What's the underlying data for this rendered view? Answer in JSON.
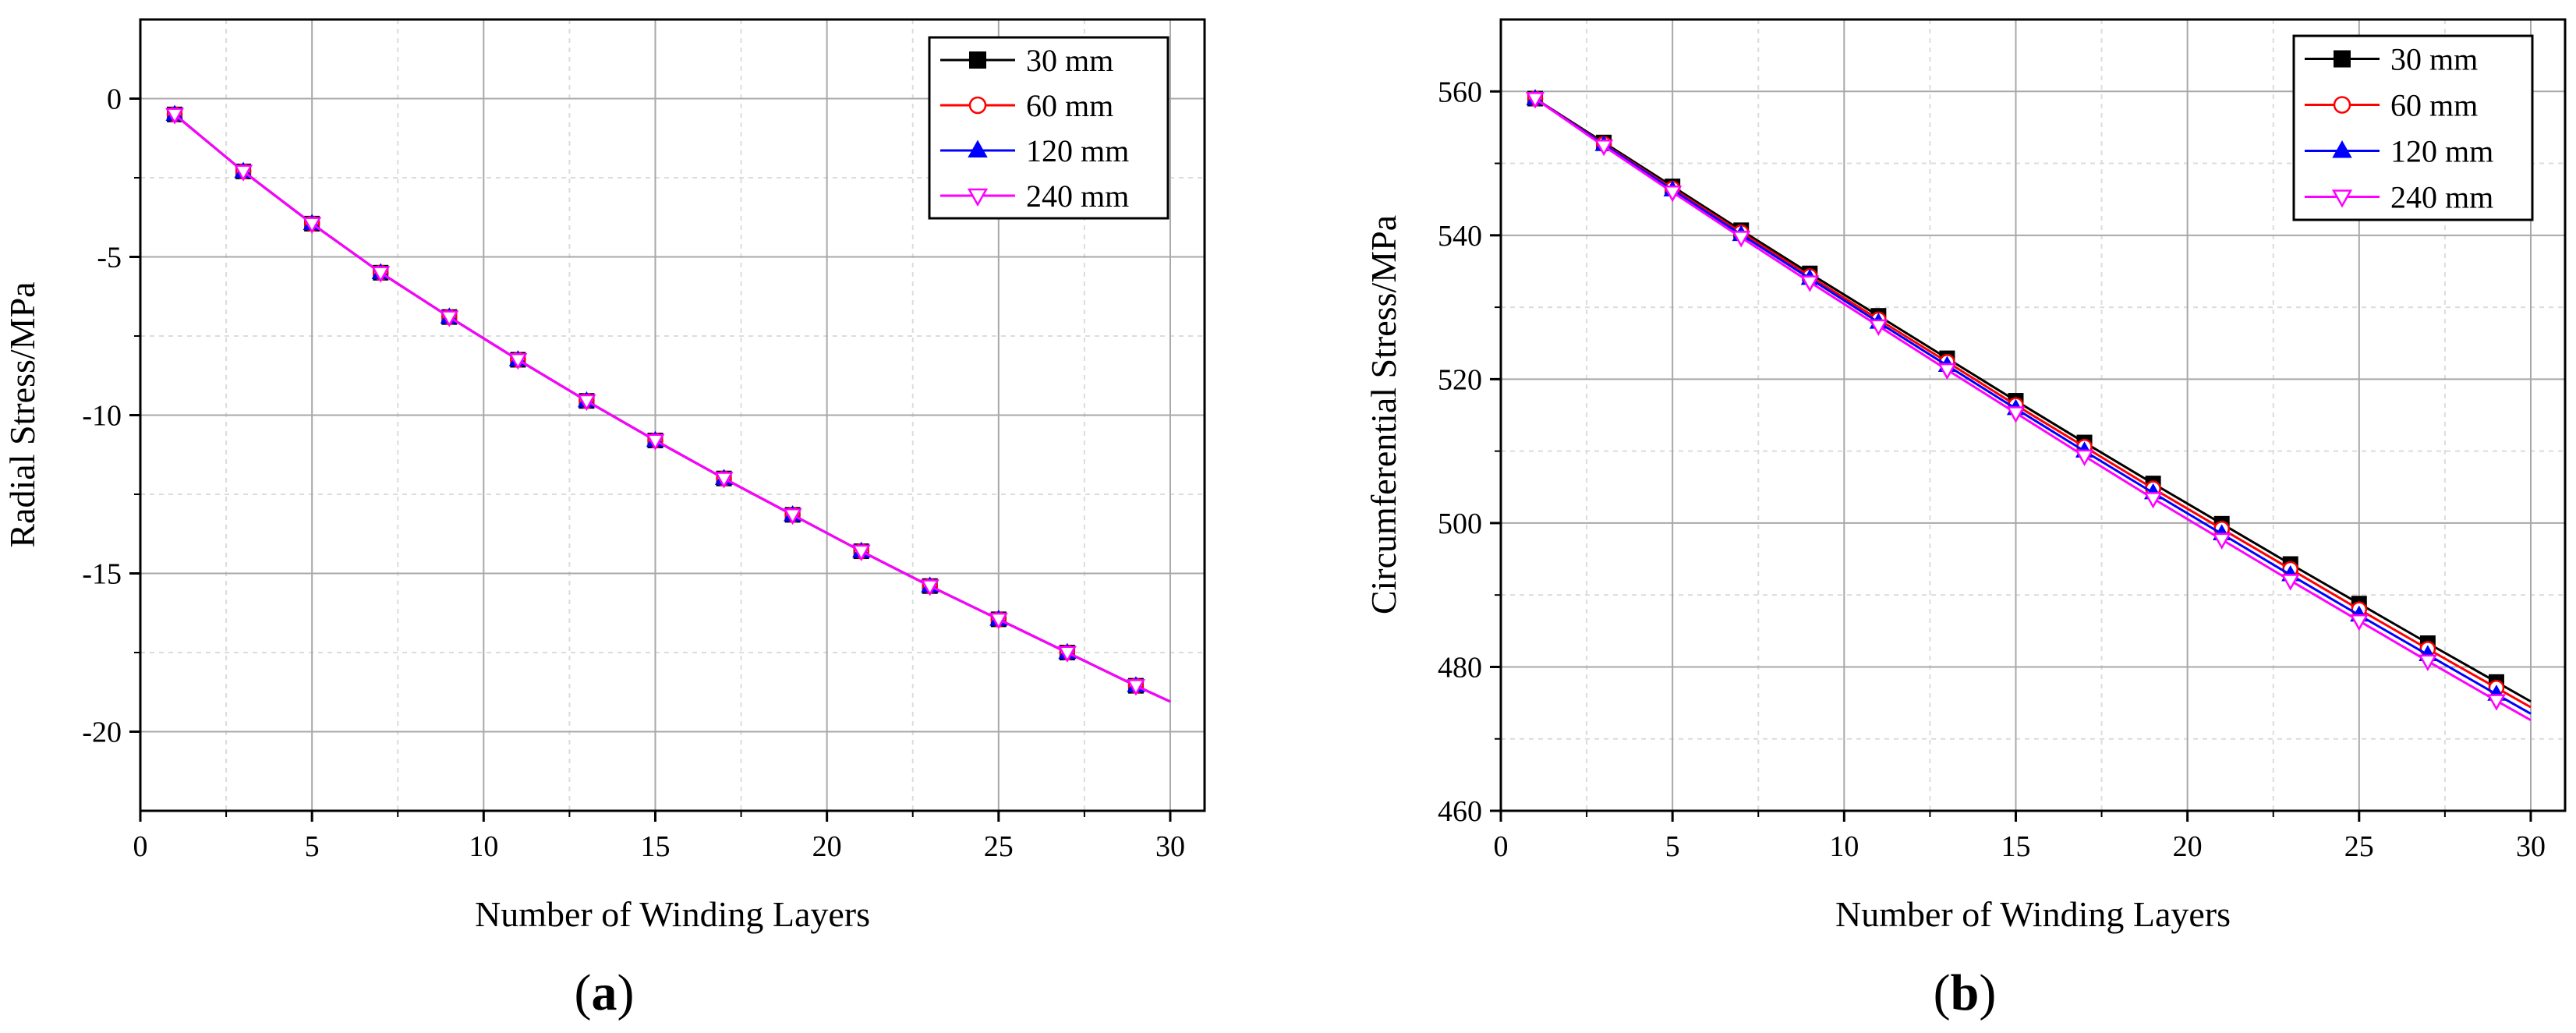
{
  "chart_data": [
    {
      "type": "line",
      "panel_label": "a",
      "xlabel": "Number of Winding Layers",
      "ylabel": "Radial Stress/MPa",
      "xlim": [
        0,
        31
      ],
      "ylim": [
        -22.5,
        2.5
      ],
      "xticks": [
        0,
        5,
        10,
        15,
        20,
        25,
        30
      ],
      "yticks": [
        0,
        -5,
        -10,
        -15,
        -20
      ],
      "grid": true,
      "legend_position": "top-right",
      "x": [
        1,
        3,
        5,
        7,
        9,
        11,
        13,
        15,
        17,
        19,
        21,
        23,
        25,
        27,
        29,
        30
      ],
      "series": [
        {
          "name": "30 mm",
          "color": "#000000",
          "marker": "filled-square",
          "values": [
            -0.5,
            -2.3,
            -3.95,
            -5.5,
            -6.9,
            -8.25,
            -9.55,
            -10.8,
            -12.0,
            -13.15,
            -14.3,
            -15.4,
            -16.45,
            -17.5,
            -18.55,
            -19.05
          ]
        },
        {
          "name": "60 mm",
          "color": "#ff0000",
          "marker": "open-circle",
          "values": [
            -0.5,
            -2.3,
            -3.95,
            -5.5,
            -6.9,
            -8.25,
            -9.55,
            -10.8,
            -12.0,
            -13.15,
            -14.3,
            -15.4,
            -16.45,
            -17.5,
            -18.55,
            -19.05
          ]
        },
        {
          "name": "120 mm",
          "color": "#0000ff",
          "marker": "filled-triangle",
          "values": [
            -0.5,
            -2.3,
            -3.95,
            -5.5,
            -6.9,
            -8.25,
            -9.55,
            -10.8,
            -12.0,
            -13.15,
            -14.3,
            -15.4,
            -16.45,
            -17.5,
            -18.55,
            -19.05
          ]
        },
        {
          "name": "240 mm",
          "color": "#ff00ff",
          "marker": "open-triangle-down",
          "values": [
            -0.5,
            -2.3,
            -3.95,
            -5.5,
            -6.9,
            -8.25,
            -9.55,
            -10.8,
            -12.0,
            -13.15,
            -14.3,
            -15.4,
            -16.45,
            -17.5,
            -18.55,
            -19.05
          ]
        }
      ]
    },
    {
      "type": "line",
      "panel_label": "b",
      "xlabel": "Number of Winding Layers",
      "ylabel": "Circumferential Stress/MPa",
      "xlim": [
        0,
        31
      ],
      "ylim": [
        460,
        570
      ],
      "xticks": [
        0,
        5,
        10,
        15,
        20,
        25,
        30
      ],
      "yticks": [
        460,
        480,
        500,
        520,
        540,
        560
      ],
      "grid": true,
      "legend_position": "top-right",
      "x": [
        1,
        3,
        5,
        7,
        9,
        11,
        13,
        15,
        17,
        19,
        21,
        23,
        25,
        27,
        29,
        30
      ],
      "series": [
        {
          "name": "30 mm",
          "color": "#000000",
          "marker": "filled-square",
          "values": [
            559.0,
            552.9,
            546.8,
            540.7,
            534.7,
            528.8,
            522.9,
            517.0,
            511.2,
            505.5,
            499.9,
            494.3,
            488.8,
            483.3,
            477.9,
            475.2
          ]
        },
        {
          "name": "60 mm",
          "color": "#ff0000",
          "marker": "open-circle",
          "values": [
            559.0,
            552.7,
            546.5,
            540.4,
            534.3,
            528.3,
            522.4,
            516.4,
            510.6,
            504.8,
            499.2,
            493.6,
            488.0,
            482.5,
            477.1,
            474.4
          ]
        },
        {
          "name": "120 mm",
          "color": "#0000ff",
          "marker": "filled-triangle",
          "values": [
            559.0,
            552.6,
            546.3,
            540.1,
            534.0,
            527.9,
            521.9,
            515.9,
            510.0,
            504.2,
            498.5,
            492.8,
            487.2,
            481.7,
            476.2,
            473.5
          ]
        },
        {
          "name": "240 mm",
          "color": "#ff00ff",
          "marker": "open-triangle-down",
          "values": [
            559.0,
            552.4,
            546.0,
            539.7,
            533.5,
            527.4,
            521.3,
            515.3,
            509.3,
            503.4,
            497.7,
            492.0,
            486.4,
            480.8,
            475.3,
            472.6
          ]
        }
      ]
    }
  ]
}
